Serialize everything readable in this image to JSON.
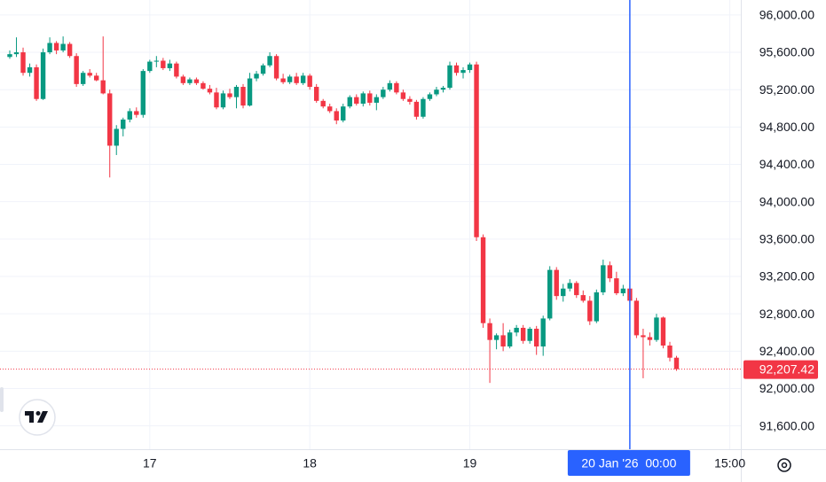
{
  "chart_data": {
    "type": "candlestick",
    "categories": [
      null,
      null,
      null,
      null,
      null,
      null,
      null,
      null,
      null,
      null,
      null,
      null,
      null,
      null,
      null,
      null,
      null,
      null,
      null,
      null,
      null,
      "17",
      null,
      null,
      null,
      null,
      null,
      null,
      null,
      null,
      null,
      null,
      null,
      null,
      null,
      null,
      null,
      null,
      null,
      null,
      null,
      null,
      null,
      null,
      null,
      "18",
      null,
      null,
      null,
      null,
      null,
      null,
      null,
      null,
      null,
      null,
      null,
      null,
      null,
      null,
      null,
      null,
      null,
      null,
      null,
      null,
      null,
      null,
      null,
      "19",
      null,
      null,
      null,
      null,
      null,
      null,
      null,
      null,
      null,
      null,
      null,
      null,
      null,
      null,
      null,
      null,
      null,
      null,
      null,
      null,
      null,
      null,
      null,
      "20 Jan '26  00:00",
      null,
      null,
      null,
      null,
      null,
      null,
      null,
      null,
      null,
      null,
      null,
      null,
      null,
      null,
      "15:00",
      null
    ],
    "open": [
      95550,
      95580,
      95600,
      95380,
      95440,
      95100,
      95600,
      95700,
      95620,
      95690,
      95560,
      95260,
      95380,
      95350,
      95300,
      95160,
      94600,
      94780,
      94880,
      94970,
      94930,
      95400,
      95500,
      95510,
      95430,
      95480,
      95340,
      95270,
      95310,
      95270,
      95210,
      95170,
      95010,
      95160,
      95120,
      95230,
      95030,
      95320,
      95370,
      95460,
      95560,
      95320,
      95280,
      95340,
      95270,
      95350,
      95230,
      95080,
      95020,
      94970,
      94870,
      95020,
      95120,
      95050,
      95160,
      95060,
      95120,
      95200,
      95270,
      95170,
      95100,
      95070,
      94910,
      95100,
      95150,
      95200,
      95220,
      95460,
      95380,
      95410,
      95470,
      93620,
      92700,
      92520,
      92570,
      92450,
      92600,
      92650,
      92510,
      92640,
      92450,
      92750,
      93270,
      92990,
      93070,
      93130,
      93000,
      92940,
      92720,
      93030,
      93320,
      93180,
      93020,
      93070,
      92940,
      92570,
      92550,
      92520,
      92760,
      92460,
      92330,
      null,
      null,
      null,
      null,
      null,
      null,
      null,
      null,
      null
    ],
    "high": [
      95620,
      95760,
      95650,
      95480,
      95470,
      95640,
      95760,
      95720,
      95770,
      95710,
      95590,
      95400,
      95420,
      95380,
      95770,
      95200,
      94820,
      94900,
      95000,
      95010,
      95420,
      95520,
      95560,
      95540,
      95520,
      95500,
      95360,
      95330,
      95330,
      95290,
      95250,
      95220,
      95190,
      95210,
      95250,
      95260,
      95380,
      95400,
      95480,
      95600,
      95580,
      95370,
      95360,
      95380,
      95380,
      95370,
      95260,
      95100,
      95050,
      95000,
      95050,
      95140,
      95150,
      95180,
      95190,
      95150,
      95230,
      95300,
      95290,
      95200,
      95130,
      95090,
      95120,
      95170,
      95230,
      95240,
      95500,
      95490,
      95440,
      95490,
      95500,
      93650,
      92750,
      92590,
      92700,
      92630,
      92680,
      92680,
      92660,
      92670,
      92780,
      93310,
      93300,
      93120,
      93170,
      93150,
      93050,
      92990,
      93060,
      93380,
      93360,
      93250,
      93110,
      93110,
      92970,
      92640,
      92600,
      92800,
      92770,
      92500,
      92350,
      null,
      null,
      null,
      null,
      null,
      null,
      null,
      null,
      null
    ],
    "low": [
      95530,
      95550,
      95350,
      95340,
      95080,
      95090,
      95580,
      95580,
      95600,
      95540,
      95230,
      95240,
      95330,
      95290,
      95150,
      94260,
      94500,
      94700,
      94850,
      94900,
      94900,
      95380,
      95440,
      95410,
      95400,
      95320,
      95250,
      95250,
      95250,
      95200,
      95150,
      94990,
      94990,
      95100,
      95000,
      95000,
      95020,
      95290,
      95350,
      95440,
      95300,
      95260,
      95260,
      95250,
      95250,
      95200,
      95060,
      95000,
      94950,
      94830,
      94850,
      95000,
      95030,
      95020,
      95030,
      94980,
      95100,
      95180,
      95150,
      95080,
      95040,
      94880,
      94890,
      95080,
      95130,
      95170,
      95200,
      95350,
      95320,
      95380,
      93580,
      92650,
      92060,
      92420,
      92400,
      92430,
      92560,
      92480,
      92480,
      92360,
      92350,
      92730,
      92950,
      92930,
      93040,
      92970,
      92920,
      92680,
      92700,
      93000,
      93140,
      93000,
      92990,
      92920,
      92540,
      92110,
      92460,
      92500,
      92430,
      92290,
      92190,
      null,
      null,
      null,
      null,
      null,
      null,
      null,
      null,
      null
    ],
    "close": [
      95580,
      95600,
      95380,
      95440,
      95100,
      95600,
      95700,
      95620,
      95690,
      95560,
      95260,
      95380,
      95350,
      95300,
      95160,
      94600,
      94780,
      94880,
      94970,
      94930,
      95400,
      95500,
      95510,
      95430,
      95480,
      95340,
      95270,
      95310,
      95270,
      95210,
      95170,
      95010,
      95160,
      95120,
      95230,
      95030,
      95320,
      95370,
      95460,
      95560,
      95320,
      95280,
      95340,
      95270,
      95350,
      95230,
      95080,
      95020,
      94970,
      94870,
      95020,
      95120,
      95050,
      95160,
      95060,
      95120,
      95200,
      95270,
      95170,
      95100,
      95070,
      94910,
      95100,
      95150,
      95200,
      95220,
      95460,
      95380,
      95410,
      95470,
      93620,
      92700,
      92520,
      92570,
      92450,
      92600,
      92650,
      92510,
      92640,
      92450,
      92750,
      93270,
      92990,
      93070,
      93130,
      93000,
      92940,
      92720,
      93030,
      93320,
      93180,
      93020,
      93070,
      92940,
      92570,
      92550,
      92520,
      92760,
      92460,
      92330,
      92207.42,
      null,
      null,
      null,
      null,
      null,
      null,
      null,
      null,
      null
    ],
    "up_color": "#089981",
    "down_color": "#f23645",
    "ylim": [
      91350,
      96160
    ],
    "yticks": [
      {
        "value": 91600,
        "label": "91,600.00"
      },
      {
        "value": 92000,
        "label": "92,000.00"
      },
      {
        "value": 92400,
        "label": "92,400.00"
      },
      {
        "value": 92800,
        "label": "92,800.00"
      },
      {
        "value": 93200,
        "label": "93,200.00"
      },
      {
        "value": 93600,
        "label": "93,600.00"
      },
      {
        "value": 94000,
        "label": "94,000.00"
      },
      {
        "value": 94400,
        "label": "94,400.00"
      },
      {
        "value": 94800,
        "label": "94,800.00"
      },
      {
        "value": 95200,
        "label": "95,200.00"
      },
      {
        "value": 95600,
        "label": "95,600.00"
      },
      {
        "value": 96000,
        "label": "96,000.00"
      }
    ],
    "grid": true,
    "crosshair": "20 Jan '26  00:00",
    "crosshair_color": "#2962ff",
    "last_price": {
      "value": 92207.42,
      "label": "92,207.42",
      "color": "#f23645"
    }
  }
}
